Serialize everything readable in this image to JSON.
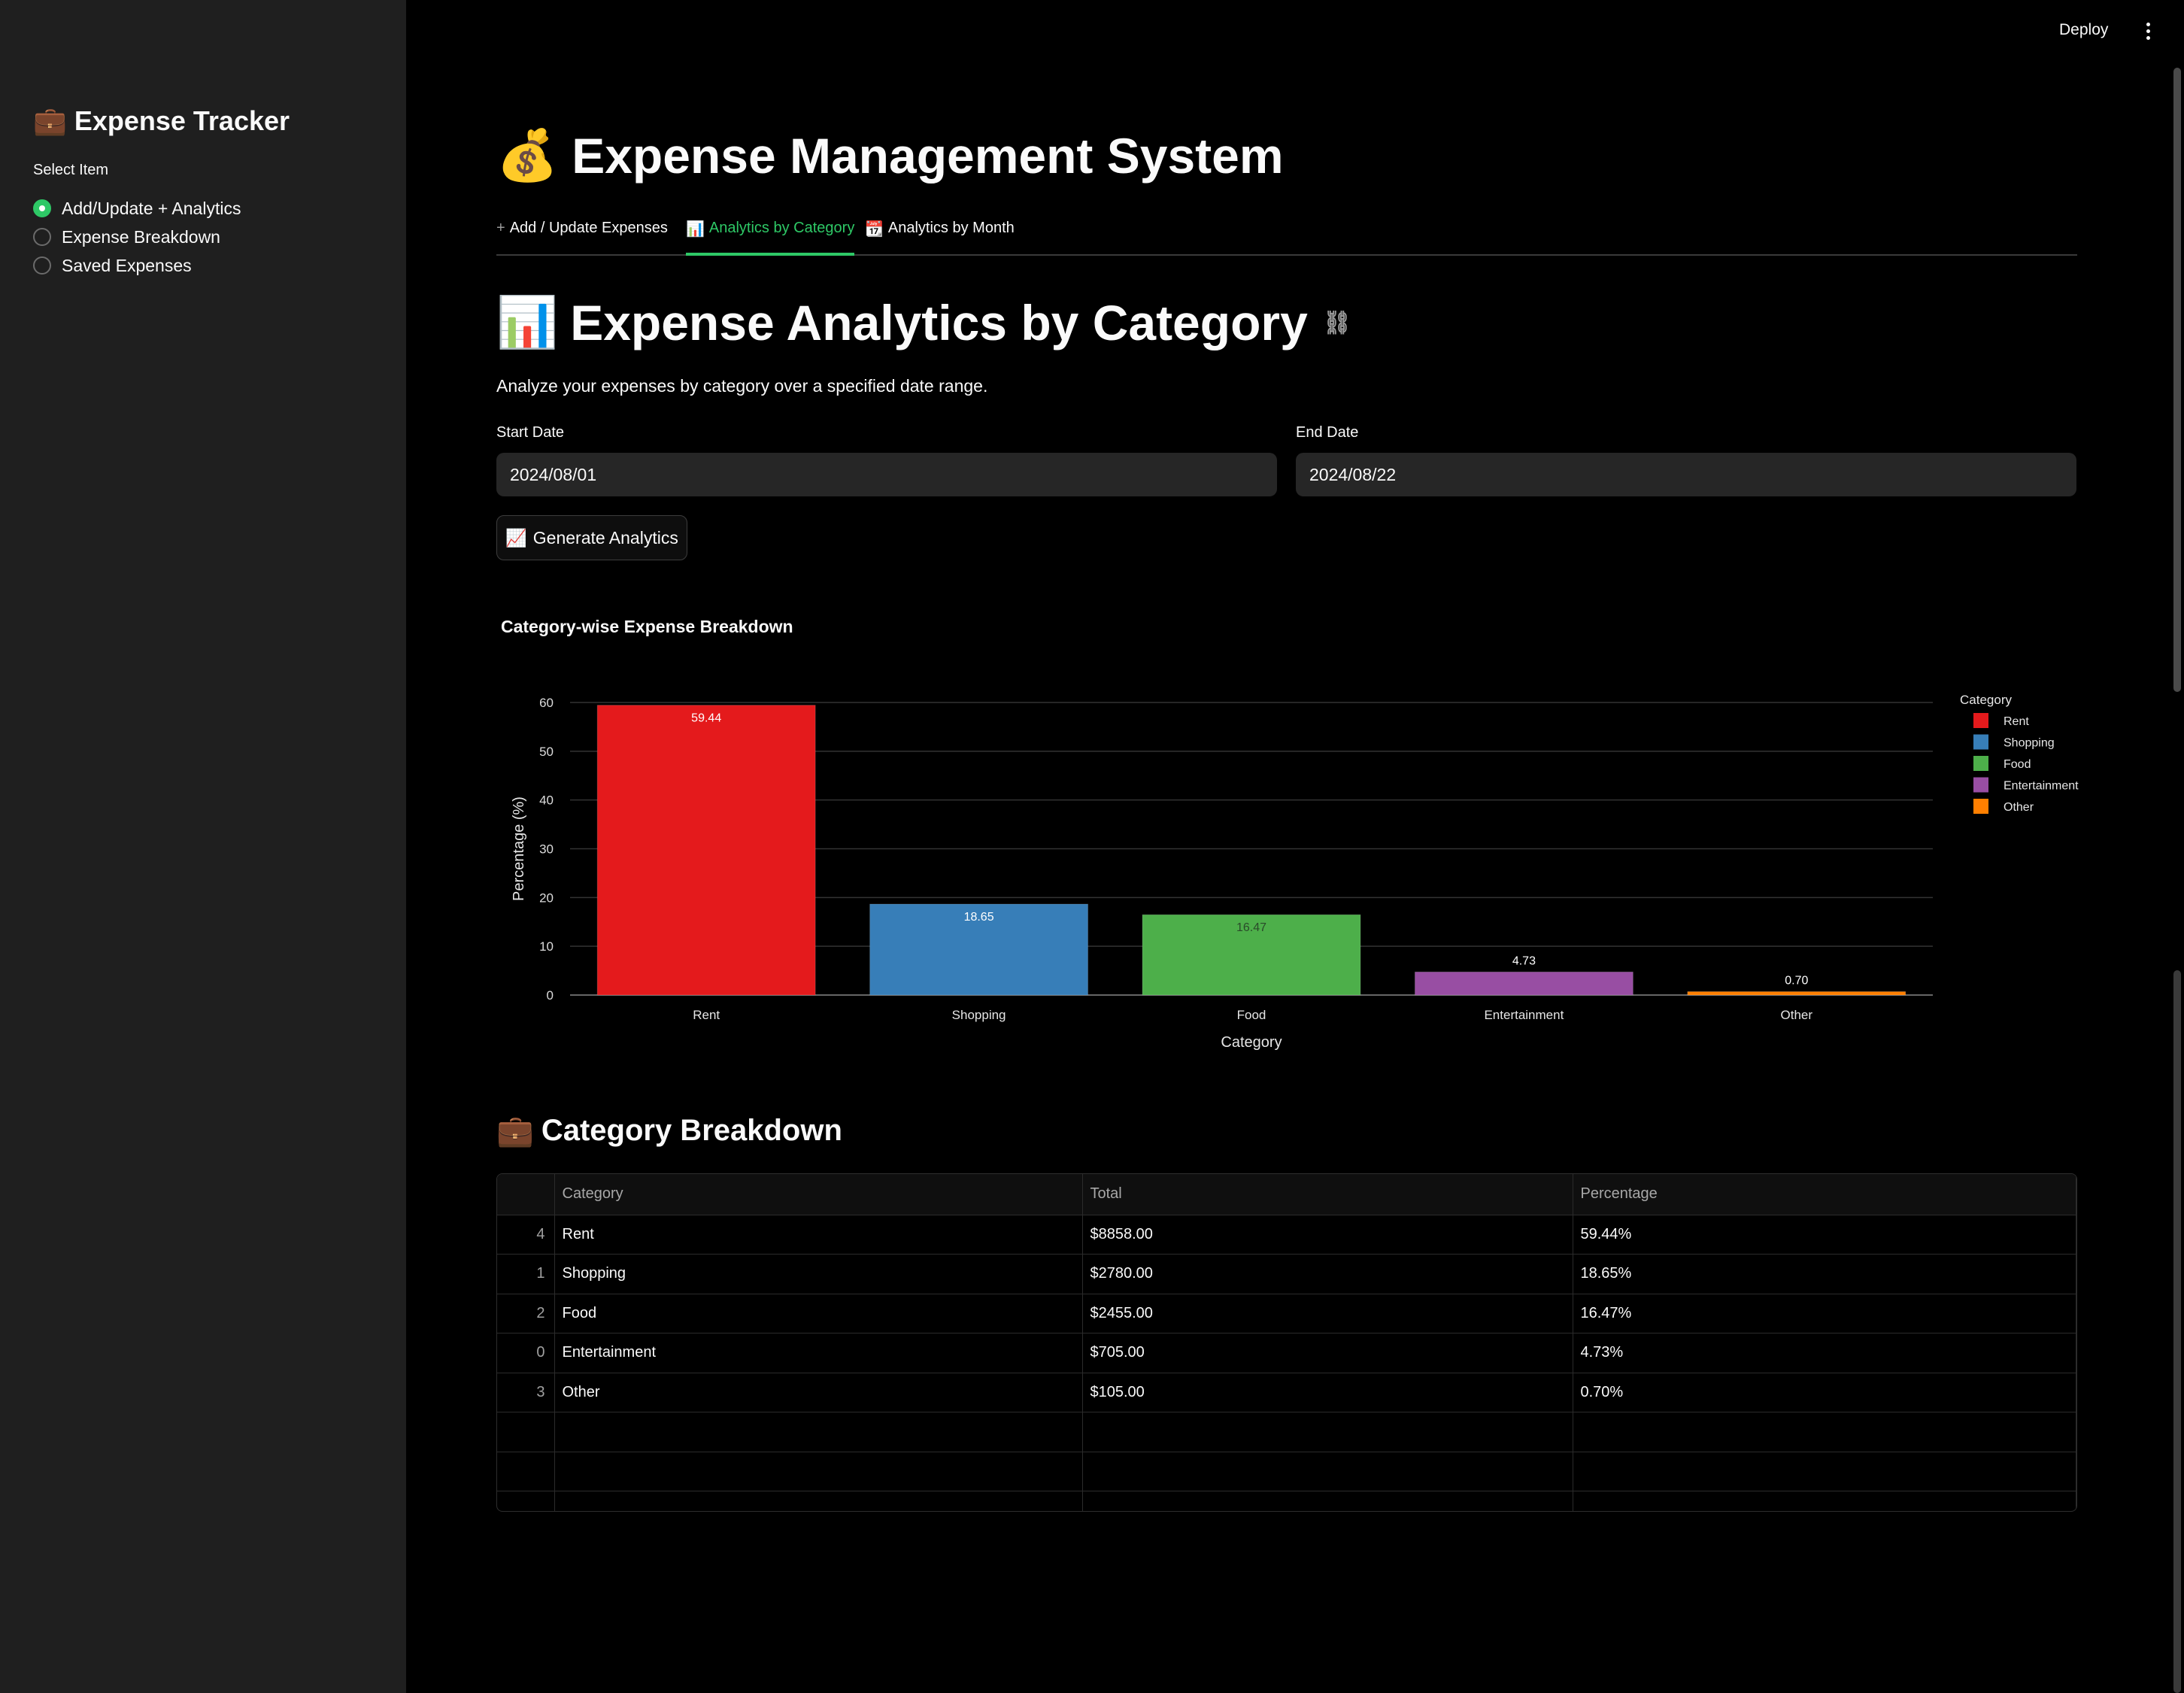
{
  "sidebar": {
    "title_icon": "💼",
    "title": "Expense Tracker",
    "select_label": "Select Item",
    "options": [
      {
        "label": "Add/Update + Analytics",
        "selected": true
      },
      {
        "label": "Expense Breakdown",
        "selected": false
      },
      {
        "label": "Saved Expenses",
        "selected": false
      }
    ]
  },
  "topbar": {
    "deploy_label": "Deploy",
    "menu_icon": "kebab-menu-icon"
  },
  "header": {
    "icon": "💰",
    "title": "Expense Management System"
  },
  "tabs": [
    {
      "icon": "+",
      "label": "Add / Update Expenses",
      "active": false
    },
    {
      "icon": "📊",
      "label": "Analytics by Category",
      "active": true
    },
    {
      "icon": "📆",
      "label": "Analytics by Month",
      "active": false
    }
  ],
  "section": {
    "icon": "📊",
    "title": "Expense Analytics by Category",
    "link_icon": "link-icon",
    "description": "Analyze your expenses by category over a specified date range."
  },
  "form": {
    "start_label": "Start Date",
    "start_value": "2024/08/01",
    "end_label": "End Date",
    "end_value": "2024/08/22",
    "button_icon": "📈",
    "button_label": "Generate Analytics"
  },
  "chart_data": {
    "type": "bar",
    "title": "Category-wise Expense Breakdown",
    "categories": [
      "Rent",
      "Shopping",
      "Food",
      "Entertainment",
      "Other"
    ],
    "values": [
      59.44,
      18.65,
      16.47,
      4.73,
      0.7
    ],
    "data_labels": [
      "59.44",
      "18.65",
      "16.47",
      "4.73",
      "0.70"
    ],
    "colors": [
      "#e41a1c",
      "#377eb8",
      "#4daf4a",
      "#984ea3",
      "#ff7f00"
    ],
    "xlabel": "Category",
    "ylabel": "Percentage (%)",
    "ylim": [
      0,
      60
    ],
    "yticks": [
      0,
      10,
      20,
      30,
      40,
      50,
      60
    ],
    "legend_title": "Category",
    "legend_position": "right",
    "grid": true
  },
  "breakdown": {
    "icon": "💼",
    "title": "Category Breakdown",
    "columns": [
      "",
      "Category",
      "Total",
      "Percentage"
    ],
    "rows": [
      [
        "4",
        "Rent",
        "$8858.00",
        "59.44%"
      ],
      [
        "1",
        "Shopping",
        "$2780.00",
        "18.65%"
      ],
      [
        "2",
        "Food",
        "$2455.00",
        "16.47%"
      ],
      [
        "0",
        "Entertainment",
        "$705.00",
        "4.73%"
      ],
      [
        "3",
        "Other",
        "$105.00",
        "0.70%"
      ]
    ],
    "empty_rows": 3
  }
}
